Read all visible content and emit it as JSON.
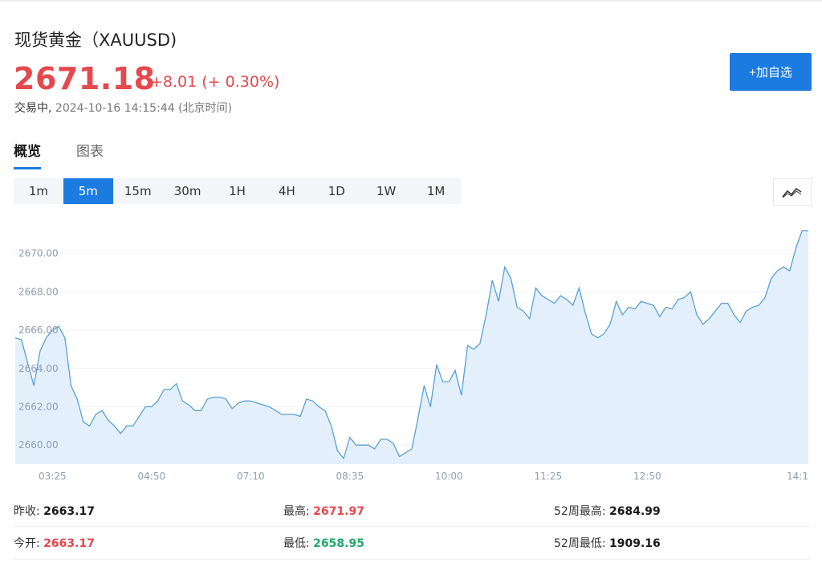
{
  "header": {
    "title": "现货黄金（XAUUSD)",
    "price": "2671.18",
    "change": "+8.01 (+ 0.30%)",
    "status": "交易中,",
    "datetime": "2024-10-16 14:15:44",
    "timezone": "(北京时间)",
    "add_watch": "+加自选"
  },
  "tabs": [
    {
      "label": "概览",
      "active": true
    },
    {
      "label": "图表",
      "active": false
    }
  ],
  "periods": [
    {
      "label": "1m",
      "active": false
    },
    {
      "label": "5m",
      "active": true
    },
    {
      "label": "15m",
      "active": false
    },
    {
      "label": "30m",
      "active": false
    },
    {
      "label": "1H",
      "active": false
    },
    {
      "label": "4H",
      "active": false
    },
    {
      "label": "1D",
      "active": false
    },
    {
      "label": "1W",
      "active": false
    },
    {
      "label": "1M",
      "active": false
    }
  ],
  "chart_icon": "line-chart-icon",
  "chart_data": {
    "type": "area",
    "ylim": [
      2659.0,
      2672.0
    ],
    "y_ticks": [
      "2670.00",
      "2668.00",
      "2666.00",
      "2664.00",
      "2662.00",
      "2660.00"
    ],
    "y_tick_values": [
      2670,
      2668,
      2666,
      2664,
      2662,
      2660
    ],
    "x_ticks": [
      "03:25",
      "04:50",
      "07:10",
      "08:35",
      "10:00",
      "11:25",
      "12:50",
      "14:1"
    ],
    "x_tick_index": [
      6,
      22,
      38,
      54,
      70,
      86,
      102,
      118
    ],
    "values": [
      2665.6,
      2665.5,
      2664.3,
      2663.1,
      2664.9,
      2665.6,
      2666.0,
      2666.2,
      2665.6,
      2663.1,
      2662.4,
      2661.2,
      2661.0,
      2661.6,
      2661.8,
      2661.3,
      2661.0,
      2660.6,
      2661.0,
      2661.0,
      2661.5,
      2662.0,
      2662.0,
      2662.3,
      2662.9,
      2662.9,
      2663.2,
      2662.3,
      2662.1,
      2661.8,
      2661.8,
      2662.4,
      2662.5,
      2662.5,
      2662.4,
      2661.9,
      2662.2,
      2662.3,
      2662.3,
      2662.2,
      2662.1,
      2662.0,
      2661.8,
      2661.6,
      2661.6,
      2661.6,
      2661.5,
      2662.4,
      2662.3,
      2662.0,
      2661.8,
      2661.0,
      2659.7,
      2659.3,
      2660.4,
      2660.0,
      2660.0,
      2660.0,
      2659.8,
      2660.3,
      2660.3,
      2660.1,
      2659.4,
      2659.6,
      2659.8,
      2661.4,
      2663.1,
      2662.0,
      2664.2,
      2663.3,
      2663.3,
      2663.9,
      2662.6,
      2665.2,
      2665.0,
      2665.3,
      2666.8,
      2668.6,
      2667.5,
      2669.3,
      2668.7,
      2667.2,
      2667.0,
      2666.6,
      2668.2,
      2667.8,
      2667.6,
      2667.4,
      2667.8,
      2667.6,
      2667.3,
      2668.2,
      2666.9,
      2665.8,
      2665.6,
      2665.8,
      2666.3,
      2667.5,
      2666.8,
      2667.2,
      2667.1,
      2667.5,
      2667.4,
      2667.3,
      2666.7,
      2667.2,
      2667.1,
      2667.6,
      2667.7,
      2668.0,
      2666.8,
      2666.3,
      2666.6,
      2667.0,
      2667.4,
      2667.4,
      2666.8,
      2666.4,
      2667.0,
      2667.2,
      2667.3,
      2667.7,
      2668.7,
      2669.1,
      2669.3,
      2669.1,
      2670.3,
      2671.2,
      2671.18
    ],
    "line_color": "#5a9fd4",
    "fill_color": "#e3f0fc",
    "grid": true
  },
  "stats": {
    "prev_close_label": "昨收:",
    "prev_close": "2663.17",
    "high_label": "最高:",
    "high": "2671.97",
    "week52_high_label": "52周最高:",
    "week52_high": "2684.99",
    "open_label": "今开:",
    "open": "2663.17",
    "low_label": "最低:",
    "low": "2658.95",
    "week52_low_label": "52周最低:",
    "week52_low": "1909.16"
  }
}
